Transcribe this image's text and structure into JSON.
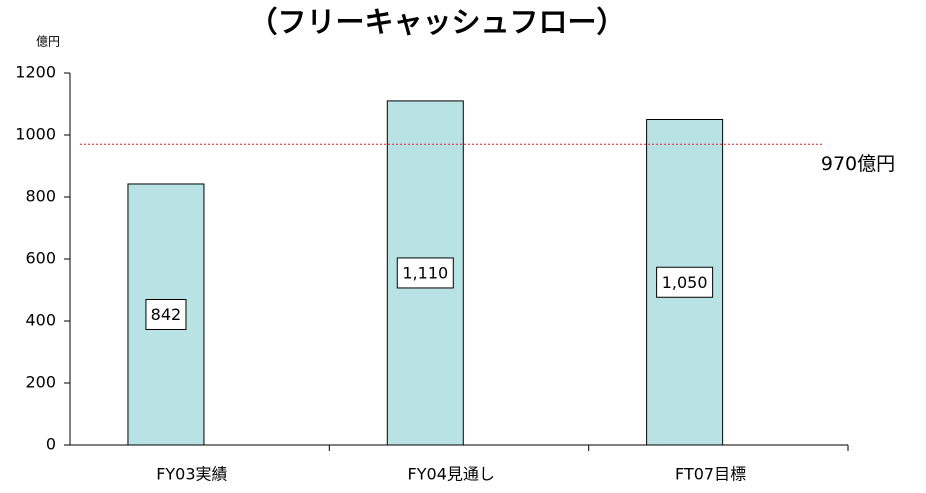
{
  "chart_data": {
    "type": "bar",
    "title": "（フリーキャッシュフロー）",
    "y_unit_label": "億円",
    "categories": [
      "FY03実績",
      "FY04見通し",
      "FT07目標"
    ],
    "values": [
      842,
      1110,
      1050
    ],
    "value_labels": [
      "842",
      "1,110",
      "1,050"
    ],
    "color": "#b9e2e4",
    "ylim": [
      0,
      1200
    ],
    "yticks": [
      0,
      200,
      400,
      600,
      800,
      1000,
      1200
    ],
    "reference_line": {
      "value": 970,
      "label": "970億円",
      "color": "#e02020"
    }
  }
}
